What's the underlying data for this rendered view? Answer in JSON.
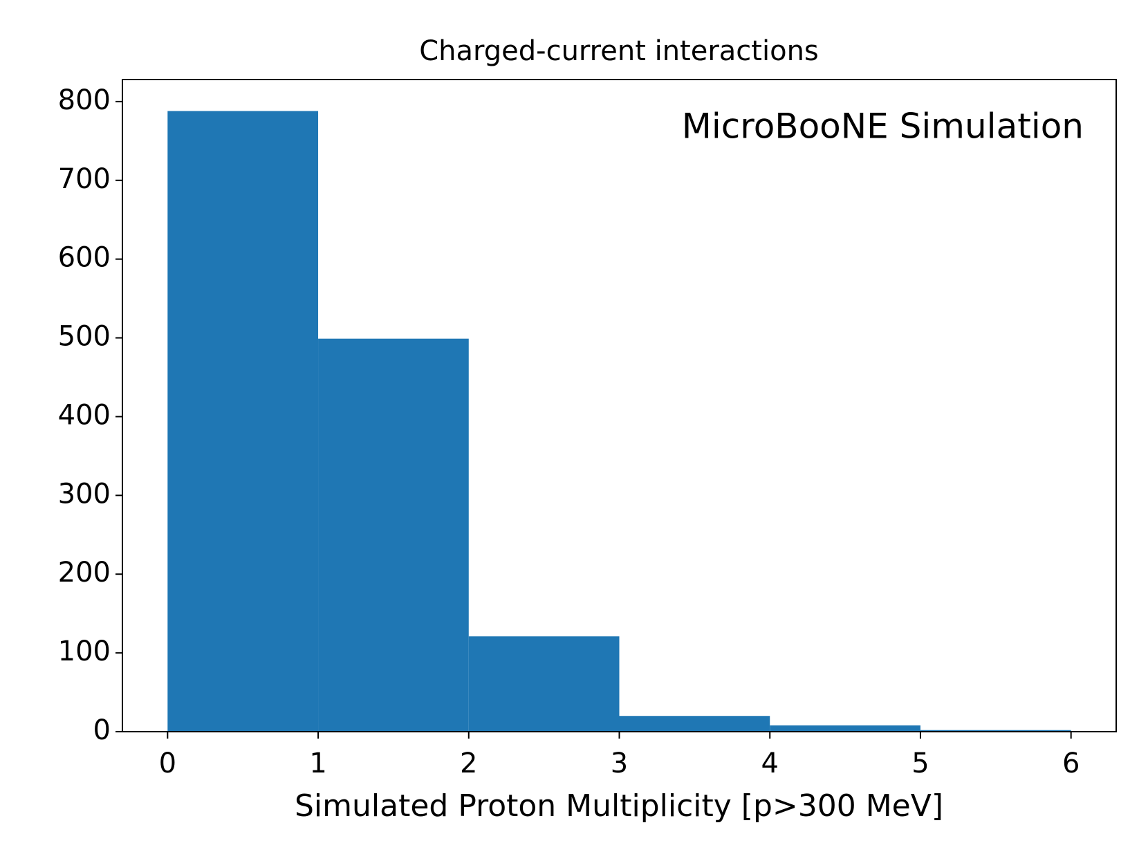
{
  "chart_data": {
    "type": "histogram",
    "title": "Charged-current interactions",
    "xlabel": "Simulated Proton Multiplicity [p>300 MeV]",
    "annotation": "MicroBooNE Simulation",
    "bins": [
      0,
      1,
      2,
      3,
      4,
      5,
      6
    ],
    "values": [
      788,
      499,
      121,
      20,
      8,
      2
    ],
    "color": "#1f77b4",
    "xlim": [
      -0.3,
      6.3
    ],
    "xticks": [
      0,
      1,
      2,
      3,
      4,
      5,
      6
    ],
    "ylim": [
      0,
      828
    ],
    "yticks": [
      0,
      100,
      200,
      300,
      400,
      500,
      600,
      700,
      800
    ],
    "grid": false
  }
}
